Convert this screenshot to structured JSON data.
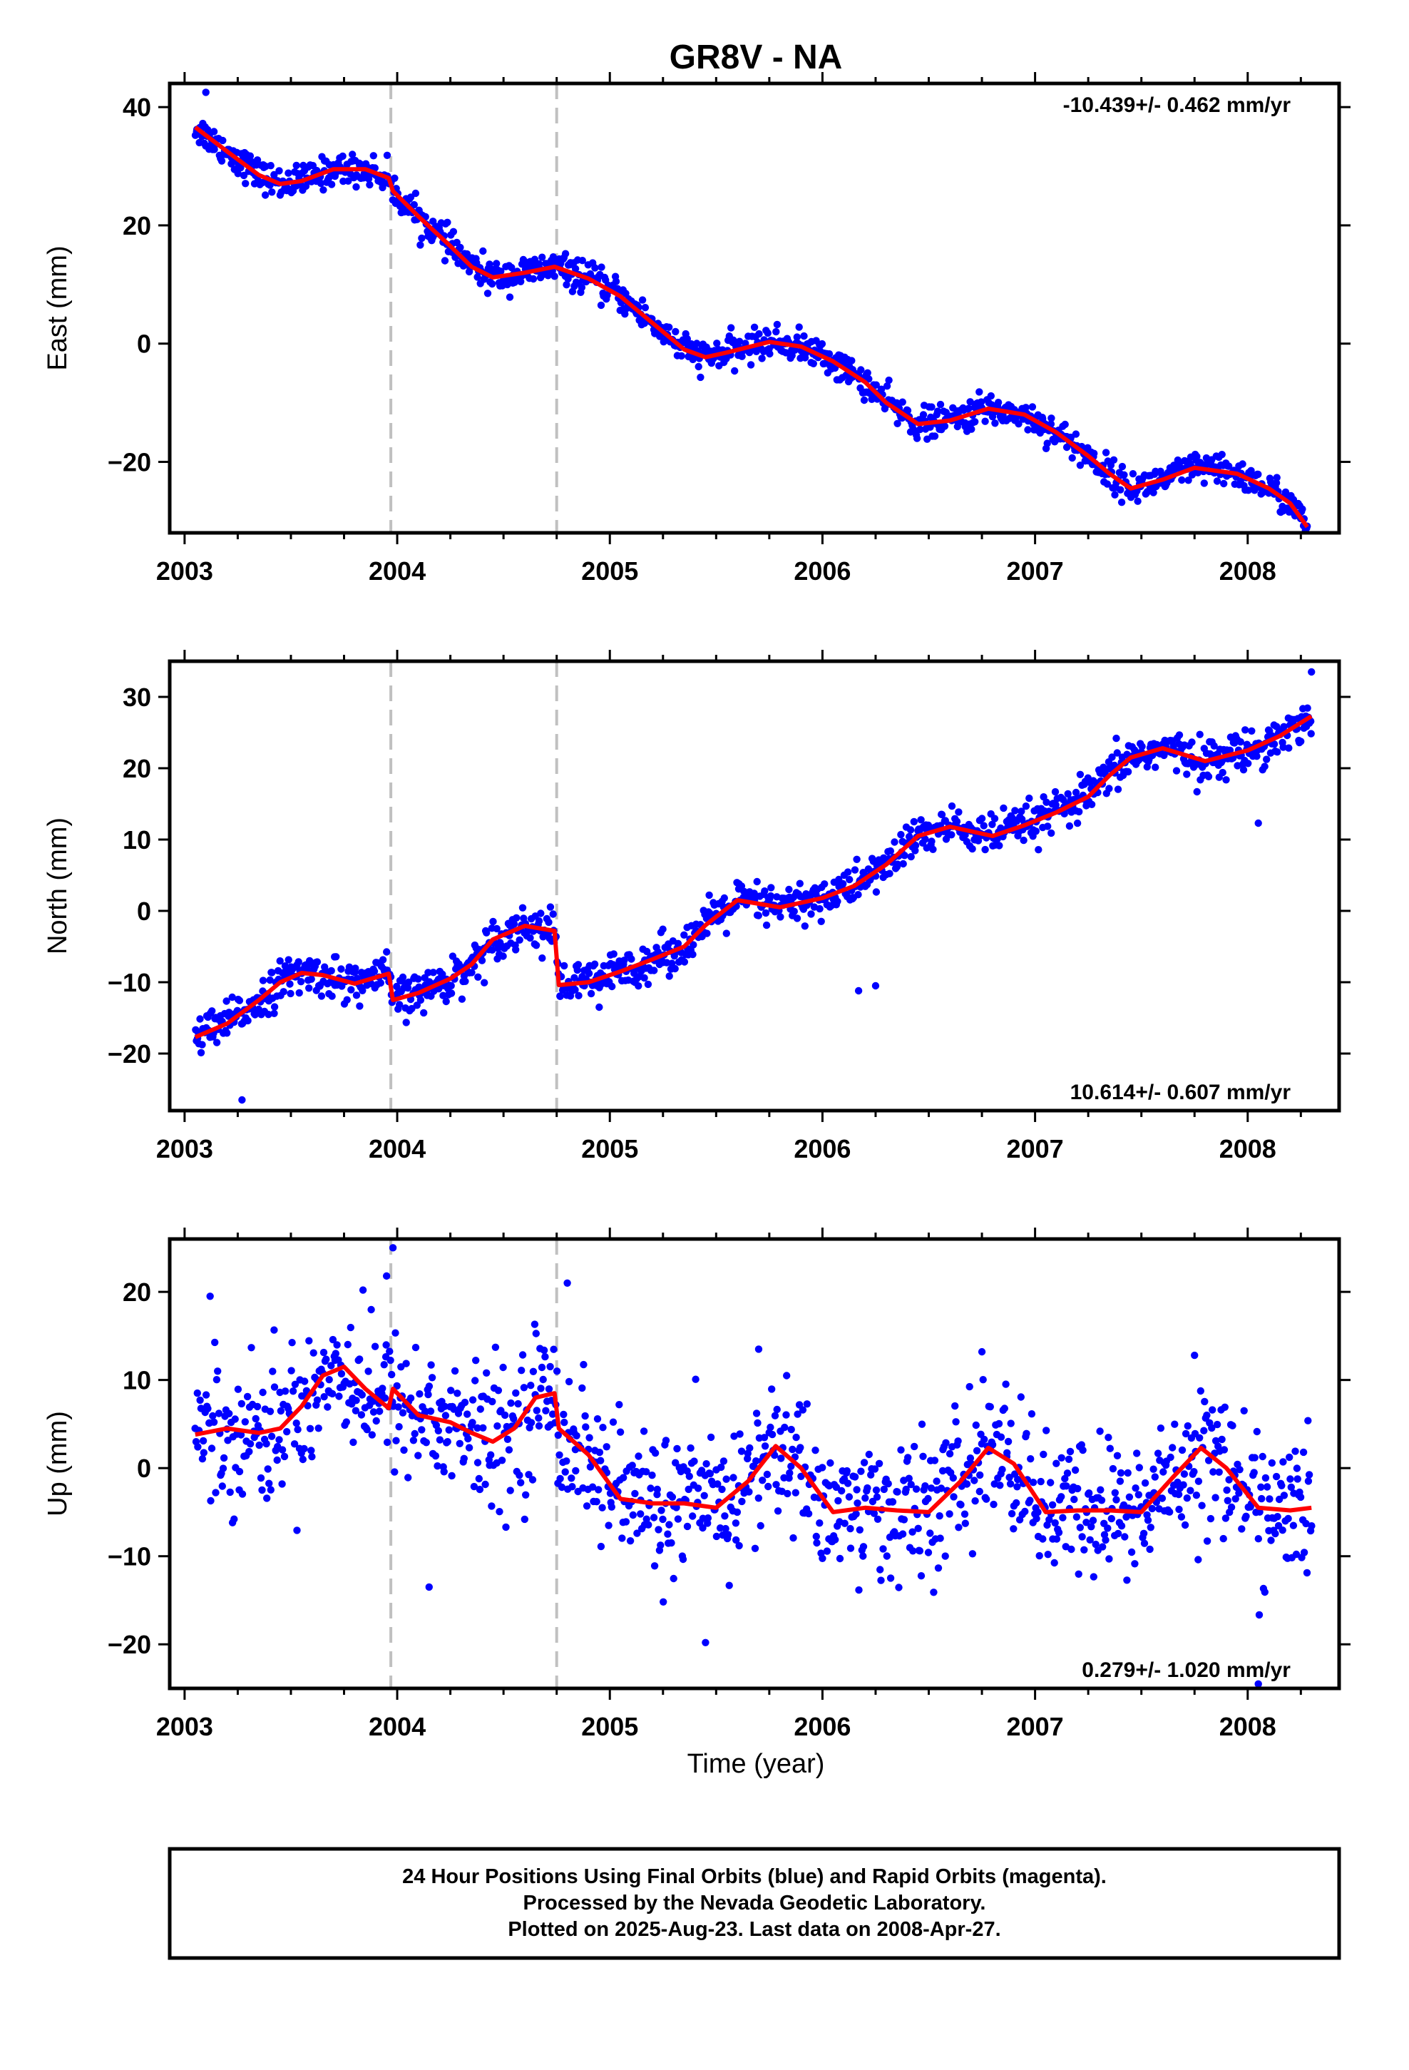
{
  "title": "GR8V - NA",
  "xlabel": "Time (year)",
  "colors": {
    "points": "#0000ff",
    "model": "#ff0000",
    "event_lines": "#c0c0c0",
    "frame": "#000000"
  },
  "footer": {
    "line1": "24 Hour Positions Using Final Orbits (blue) and Rapid Orbits (magenta).",
    "line2": "Processed by the Nevada Geodetic Laboratory.",
    "line3": "Plotted on 2025-Aug-23. Last data on 2008-Apr-27."
  },
  "chart_data": [
    {
      "type": "scatter",
      "component": "east",
      "ylabel": "East (mm)",
      "rate": "-10.439+/- 0.462 mm/yr",
      "rate_position": "top-right",
      "xlim": [
        2002.93,
        2008.43
      ],
      "ylim": [
        -32,
        44
      ],
      "x_ticks": [
        2003,
        2004,
        2005,
        2006,
        2007,
        2008
      ],
      "y_ticks": [
        -20,
        0,
        20,
        40
      ],
      "event_lines": [
        2003.97,
        2004.75
      ],
      "model": {
        "x": [
          2003.05,
          2003.2,
          2003.35,
          2003.45,
          2003.55,
          2003.7,
          2003.85,
          2003.96,
          2003.98,
          2004.1,
          2004.25,
          2004.35,
          2004.45,
          2004.6,
          2004.74,
          2004.9,
          2005.05,
          2005.2,
          2005.35,
          2005.45,
          2005.55,
          2005.75,
          2005.9,
          2006.05,
          2006.2,
          2006.3,
          2006.45,
          2006.6,
          2006.78,
          2006.95,
          2007.1,
          2007.25,
          2007.35,
          2007.45,
          2007.6,
          2007.75,
          2007.95,
          2008.1,
          2008.2,
          2008.28
        ],
        "y": [
          36.6,
          32.5,
          28.5,
          27.0,
          27.5,
          29.5,
          29.5,
          28.0,
          25.8,
          21.5,
          16.5,
          13.0,
          11.2,
          12.0,
          13.0,
          11.0,
          8.0,
          3.5,
          -1.0,
          -2.3,
          -1.5,
          0.3,
          -0.5,
          -3.0,
          -6.5,
          -10.0,
          -13.6,
          -13.0,
          -11.0,
          -12.0,
          -15.0,
          -19.0,
          -22.0,
          -24.5,
          -23.0,
          -21.0,
          -22.0,
          -24.5,
          -27.0,
          -31.0
        ]
      },
      "outliers": [
        {
          "x": 2003.1,
          "y": 42.5
        }
      ]
    },
    {
      "type": "scatter",
      "component": "north",
      "ylabel": "North (mm)",
      "rate": "10.614+/- 0.607 mm/yr",
      "rate_position": "bottom-right",
      "xlim": [
        2002.93,
        2008.43
      ],
      "ylim": [
        -28,
        35
      ],
      "x_ticks": [
        2003,
        2004,
        2005,
        2006,
        2007,
        2008
      ],
      "y_ticks": [
        -20,
        -10,
        0,
        10,
        20,
        30
      ],
      "event_lines": [
        2003.97,
        2004.75
      ],
      "model": {
        "x": [
          2003.05,
          2003.2,
          2003.35,
          2003.45,
          2003.55,
          2003.65,
          2003.8,
          2003.96,
          2003.98,
          2004.1,
          2004.25,
          2004.35,
          2004.45,
          2004.6,
          2004.74,
          2004.76,
          2004.9,
          2005.05,
          2005.2,
          2005.35,
          2005.45,
          2005.6,
          2005.8,
          2006.0,
          2006.15,
          2006.3,
          2006.45,
          2006.6,
          2006.8,
          2006.95,
          2007.1,
          2007.25,
          2007.35,
          2007.45,
          2007.6,
          2007.8,
          2008.0,
          2008.15,
          2008.3
        ],
        "y": [
          -17.7,
          -15.8,
          -12.5,
          -10.0,
          -8.7,
          -9.0,
          -10.2,
          -8.8,
          -12.5,
          -11.5,
          -9.5,
          -7.5,
          -4.0,
          -2.1,
          -2.8,
          -10.4,
          -10.0,
          -8.5,
          -6.8,
          -5.0,
          -2.0,
          1.5,
          0.5,
          1.8,
          3.5,
          6.5,
          10.5,
          11.8,
          10.5,
          12.0,
          13.8,
          16.0,
          19.0,
          21.5,
          22.8,
          21.0,
          22.5,
          24.5,
          27.3
        ]
      },
      "outliers": [
        {
          "x": 2003.27,
          "y": -26.5
        },
        {
          "x": 2006.17,
          "y": -11.2
        },
        {
          "x": 2006.25,
          "y": -10.5
        },
        {
          "x": 2008.05,
          "y": 12.3
        },
        {
          "x": 2008.3,
          "y": 33.5
        },
        {
          "x": 2004.95,
          "y": -13.5
        }
      ]
    },
    {
      "type": "scatter",
      "component": "up",
      "ylabel": "Up (mm)",
      "rate": "0.279+/- 1.020 mm/yr",
      "rate_position": "bottom-right",
      "xlim": [
        2002.93,
        2008.43
      ],
      "ylim": [
        -25,
        26
      ],
      "x_ticks": [
        2003,
        2004,
        2005,
        2006,
        2007,
        2008
      ],
      "y_ticks": [
        -20,
        -10,
        0,
        10,
        20
      ],
      "event_lines": [
        2003.97,
        2004.75
      ],
      "model": {
        "x": [
          2003.05,
          2003.2,
          2003.35,
          2003.45,
          2003.55,
          2003.65,
          2003.75,
          2003.85,
          2003.96,
          2003.98,
          2004.1,
          2004.25,
          2004.35,
          2004.45,
          2004.55,
          2004.65,
          2004.74,
          2004.76,
          2004.9,
          2005.05,
          2005.2,
          2005.35,
          2005.5,
          2005.65,
          2005.78,
          2005.9,
          2006.05,
          2006.2,
          2006.35,
          2006.5,
          2006.65,
          2006.78,
          2006.9,
          2007.05,
          2007.2,
          2007.35,
          2007.5,
          2007.65,
          2007.78,
          2007.9,
          2008.05,
          2008.2,
          2008.3
        ],
        "y": [
          3.8,
          4.5,
          4.0,
          4.5,
          7.0,
          10.5,
          11.5,
          9.0,
          6.8,
          9.0,
          6.0,
          5.2,
          4.0,
          3.0,
          4.5,
          8.0,
          8.5,
          4.5,
          1.5,
          -3.5,
          -4.0,
          -4.0,
          -4.5,
          -1.5,
          2.5,
          0.0,
          -5.0,
          -4.5,
          -4.8,
          -5.0,
          -1.5,
          2.3,
          0.5,
          -5.0,
          -4.8,
          -4.8,
          -5.0,
          -1.0,
          2.3,
          0.0,
          -4.5,
          -4.8,
          -4.5
        ]
      },
      "outliers": [
        {
          "x": 2003.98,
          "y": 25.0
        },
        {
          "x": 2003.95,
          "y": 21.8
        },
        {
          "x": 2003.12,
          "y": 19.5
        },
        {
          "x": 2004.15,
          "y": -13.5
        },
        {
          "x": 2005.45,
          "y": -19.8
        },
        {
          "x": 2008.05,
          "y": -24.5
        },
        {
          "x": 2004.8,
          "y": 21.0
        },
        {
          "x": 2007.75,
          "y": 12.8
        },
        {
          "x": 2006.75,
          "y": 13.2
        },
        {
          "x": 2005.7,
          "y": 13.5
        }
      ]
    }
  ]
}
